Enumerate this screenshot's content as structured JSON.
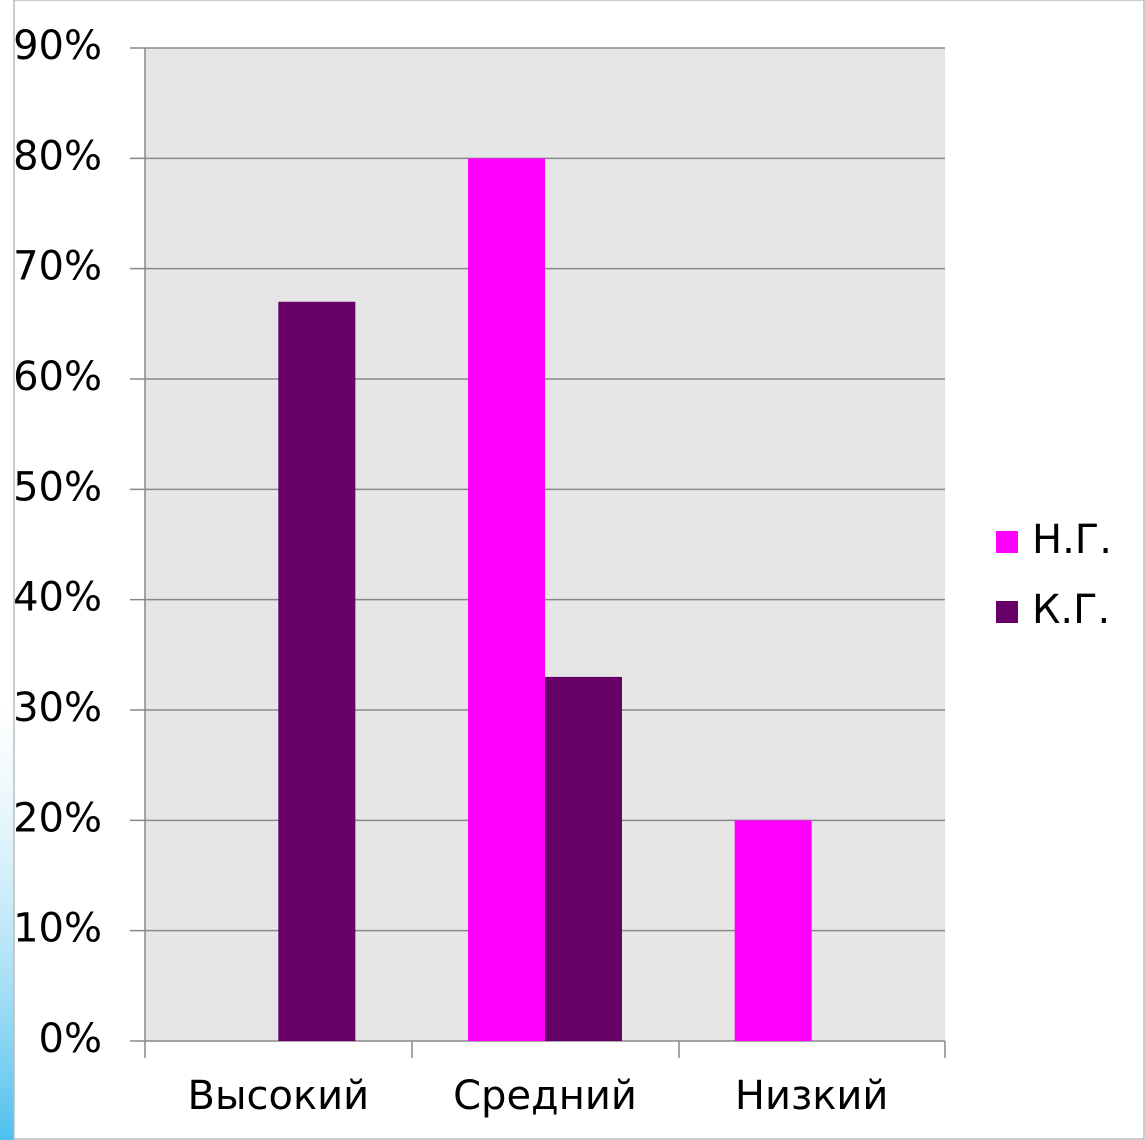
{
  "chart_data": {
    "type": "bar",
    "categories": [
      "Высокий",
      "Средний",
      "Низкий"
    ],
    "series": [
      {
        "name": "Н.Г.",
        "color": "#ff00ff",
        "values": [
          0,
          80,
          20
        ]
      },
      {
        "name": "К.Г.",
        "color": "#660066",
        "values": [
          67,
          33,
          0
        ]
      }
    ],
    "ylim": [
      0,
      90
    ],
    "yticks": [
      {
        "value": 0,
        "label": "0%"
      },
      {
        "value": 10,
        "label": "10%"
      },
      {
        "value": 20,
        "label": "20%"
      },
      {
        "value": 30,
        "label": "30%"
      },
      {
        "value": 40,
        "label": "40%"
      },
      {
        "value": 50,
        "label": "50%"
      },
      {
        "value": 60,
        "label": "60%"
      },
      {
        "value": 70,
        "label": "70%"
      },
      {
        "value": 80,
        "label": "80%"
      },
      {
        "value": 90,
        "label": "90%"
      }
    ],
    "grid": true,
    "legend": "right"
  }
}
